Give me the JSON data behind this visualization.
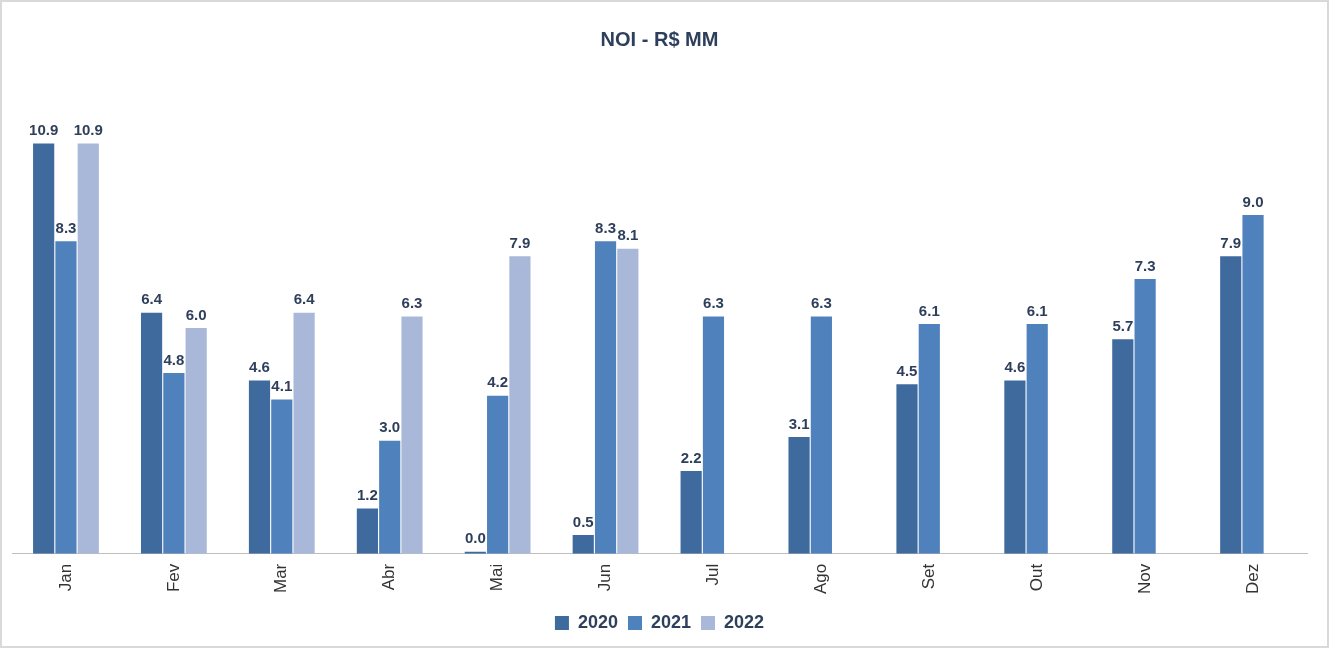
{
  "chart_data": {
    "type": "bar",
    "title": "NOI - R$ MM",
    "categories": [
      "Jan",
      "Fev",
      "Mar",
      "Abr",
      "Mai",
      "Jun",
      "Jul",
      "Ago",
      "Set",
      "Out",
      "Nov",
      "Dez"
    ],
    "series": [
      {
        "name": "2020",
        "color": "#3f6a9e",
        "values": [
          10.9,
          6.4,
          4.6,
          1.2,
          0.0,
          0.5,
          2.2,
          3.1,
          4.5,
          4.6,
          5.7,
          7.9
        ],
        "value_labels": [
          "10.9",
          "6.4",
          "4.6",
          "1.2",
          "0.0",
          "0.5",
          "2.2",
          "3.1",
          "4.5",
          "4.6",
          "5.7",
          "7.9"
        ]
      },
      {
        "name": "2021",
        "color": "#4f81bd",
        "values": [
          8.3,
          4.8,
          4.1,
          3.0,
          4.2,
          8.3,
          6.3,
          6.3,
          6.1,
          6.1,
          7.3,
          9.0
        ],
        "value_labels": [
          "8.3",
          "4.8",
          "4.1",
          "3.0",
          "4.2",
          "8.3",
          "6.3",
          "6.3",
          "6.1",
          "6.1",
          "7.3",
          "9.0"
        ]
      },
      {
        "name": "2022",
        "color": "#a9b8d9",
        "values": [
          10.9,
          6.0,
          6.4,
          6.3,
          7.9,
          8.1,
          null,
          null,
          null,
          null,
          null,
          null
        ],
        "value_labels": [
          "10.9",
          "6.0",
          "6.4",
          "6.3",
          "7.9",
          "8.1",
          null,
          null,
          null,
          null,
          null,
          null
        ]
      }
    ],
    "grid": false,
    "legend": "bottom"
  }
}
